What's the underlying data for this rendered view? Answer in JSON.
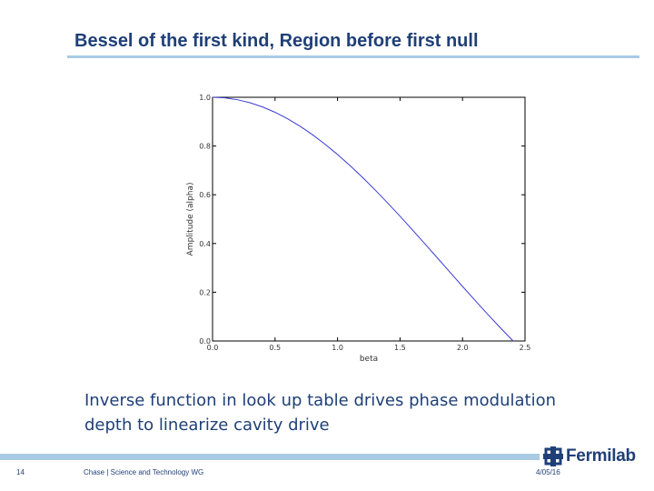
{
  "slide": {
    "title": "Bessel of the first kind, Region before first null",
    "body_lines": [
      "Inverse function in look up table drives  phase modulation",
      "depth to linearize cavity drive"
    ]
  },
  "footer": {
    "page_number": "14",
    "center_text": "Chase | Science and Technology WG",
    "date": "4/05/16",
    "logo_text": "Fermilab"
  },
  "colors": {
    "title": "#1f3f77",
    "rule": "#a9cbe3",
    "curve": "#3b3bd6"
  },
  "chart_data": {
    "type": "line",
    "title": "",
    "xlabel": "beta",
    "ylabel": "Amplitude (alpha)",
    "xlim": [
      0.0,
      2.5
    ],
    "ylim": [
      0.0,
      1.0
    ],
    "xticks": [
      "0.0",
      "0.5",
      "1.0",
      "1.5",
      "2.0",
      "2.5"
    ],
    "yticks": [
      "0.0",
      "0.2",
      "0.4",
      "0.6",
      "0.8",
      "1.0"
    ],
    "grid": false,
    "series": [
      {
        "x": [
          0.0,
          0.1,
          0.2,
          0.3,
          0.4,
          0.5,
          0.6,
          0.7,
          0.8,
          0.9,
          1.0,
          1.1,
          1.2,
          1.3,
          1.4,
          1.5,
          1.6,
          1.7,
          1.8,
          1.9,
          2.0,
          2.1,
          2.2,
          2.3,
          2.4048
        ],
        "y": [
          1.0,
          0.9975,
          0.99,
          0.9776,
          0.9604,
          0.9385,
          0.912,
          0.8812,
          0.8463,
          0.8075,
          0.7652,
          0.7196,
          0.6711,
          0.6201,
          0.5669,
          0.5118,
          0.4554,
          0.398,
          0.34,
          0.2818,
          0.2239,
          0.1666,
          0.1104,
          0.0555,
          0.0
        ]
      }
    ]
  }
}
